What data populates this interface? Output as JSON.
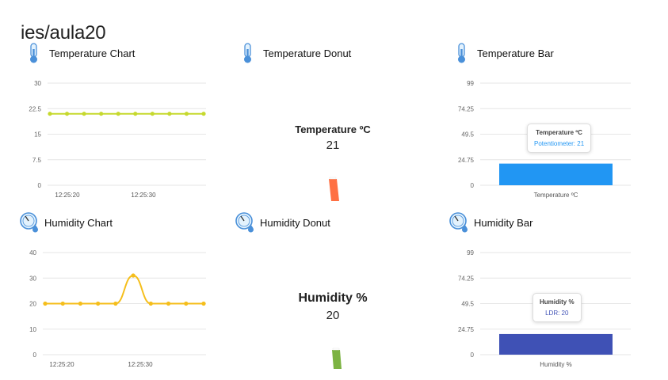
{
  "page": {
    "title": "ies/aula20"
  },
  "widgets": {
    "temp_chart": {
      "title": "Temperature Chart",
      "icon": "thermometer-icon"
    },
    "temp_donut": {
      "title": "Temperature Donut",
      "icon": "thermometer-icon",
      "label": "Temperature ºC",
      "value": "21",
      "bar_color": "#ff7043"
    },
    "temp_bar": {
      "title": "Temperature Bar",
      "icon": "thermometer-icon",
      "tooltip_title": "Temperature ºC",
      "tooltip_value": "Potentiometer: 21",
      "tooltip_color": "#2196f3"
    },
    "hum_chart": {
      "title": "Humidity Chart",
      "icon": "humidity-gauge-icon"
    },
    "hum_donut": {
      "title": "Humidity Donut",
      "icon": "humidity-gauge-icon",
      "label": "Humidity %",
      "value": "20",
      "bar_color": "#7cb342"
    },
    "hum_bar": {
      "title": "Humidity Bar",
      "icon": "humidity-gauge-icon",
      "tooltip_title": "Humidity %",
      "tooltip_value": "LDR: 20",
      "tooltip_color": "#3f51b5"
    }
  },
  "chart_data": [
    {
      "type": "line",
      "name": "temp_chart",
      "ylim": [
        0,
        30
      ],
      "yticks": [
        "0",
        "7.5",
        "15",
        "22.5",
        "30"
      ],
      "xticks": [
        "12:25:20",
        "12:25:30"
      ],
      "series": [
        {
          "values": [
            21,
            21,
            21,
            21,
            21,
            21,
            21,
            21,
            21,
            21
          ],
          "color": "#c6d92e"
        }
      ]
    },
    {
      "type": "bar",
      "name": "temp_bar",
      "ylim": [
        0,
        99
      ],
      "yticks": [
        "0",
        "24.75",
        "49.5",
        "74.25",
        "99"
      ],
      "categories": [
        "Temperature ºC"
      ],
      "series": [
        {
          "values": [
            21
          ],
          "color": "#2196f3"
        }
      ]
    },
    {
      "type": "line",
      "name": "hum_chart",
      "ylim": [
        0,
        40
      ],
      "yticks": [
        "0",
        "10",
        "20",
        "30",
        "40"
      ],
      "xticks": [
        "12:25:20",
        "12:25:30"
      ],
      "series": [
        {
          "values": [
            20,
            20,
            20,
            20,
            20,
            31,
            20,
            20,
            20,
            20
          ],
          "color": "#f5be1b"
        }
      ]
    },
    {
      "type": "bar",
      "name": "hum_bar",
      "ylim": [
        0,
        99
      ],
      "yticks": [
        "0",
        "24.75",
        "49.5",
        "74.25",
        "99"
      ],
      "categories": [
        "Humidity %"
      ],
      "series": [
        {
          "values": [
            20
          ],
          "color": "#3f51b5"
        }
      ]
    }
  ]
}
